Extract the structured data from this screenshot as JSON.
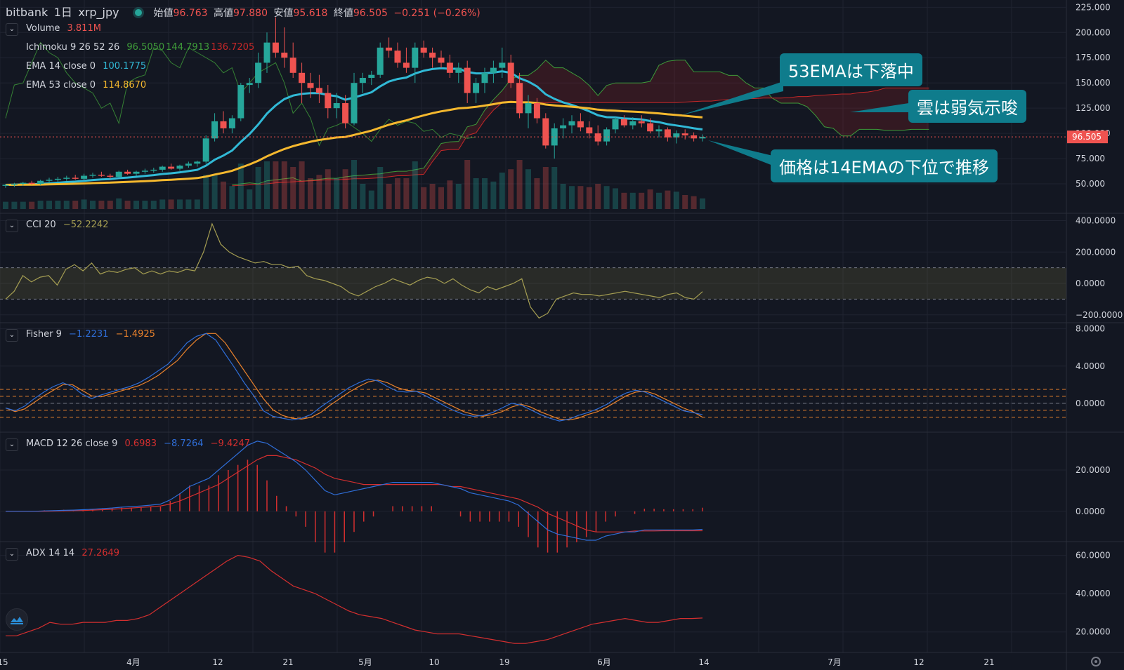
{
  "header": {
    "exchange": "bitbank",
    "interval": "1日",
    "symbol": "xrp_jpy",
    "open_label": "始値",
    "open": "96.763",
    "high_label": "高値",
    "high": "97.880",
    "low_label": "安値",
    "low": "95.618",
    "close_label": "終値",
    "close": "96.505",
    "change": "−0.251 (−0.26%)"
  },
  "legends": {
    "volume": {
      "name": "Volume",
      "value": "3.811M"
    },
    "ichimoku": {
      "name": "Ichimoku 9 26 52 26",
      "v1": "96.5050",
      "v2": "144.7913",
      "v3": "136.7205"
    },
    "ema14": {
      "name": "EMA 14 close 0",
      "value": "100.1775"
    },
    "ema53": {
      "name": "EMA 53 close 0",
      "value": "114.8670"
    },
    "cci": {
      "name": "CCI 20",
      "value": "−52.2242"
    },
    "fisher": {
      "name": "Fisher 9",
      "v1": "−1.2231",
      "v2": "−1.4925"
    },
    "macd": {
      "name": "MACD 12 26 close 9",
      "v1": "0.6983",
      "v2": "−8.7264",
      "v3": "−9.4247"
    },
    "adx": {
      "name": "ADX 14 14",
      "value": "27.2649"
    }
  },
  "annotations": {
    "ema53": "53EMAは下落中",
    "cloud": "雲は弱気示唆",
    "price": "価格は14EMAの下位で推移"
  },
  "price_tag": "96.505",
  "colors": {
    "bg": "#131722",
    "up": "#26a69a",
    "down": "#ef5350",
    "ema14": "#31b9d6",
    "ema53": "#f5b82e",
    "ichimoku_green": "#3f9b3a",
    "ichimoku_red": "#c62828",
    "cci": "#a59e52",
    "fisher_blue": "#2f6ed8",
    "fisher_orange": "#e8812c",
    "macd_blue": "#2f6ed8",
    "macd_red": "#d32f2f",
    "adx": "#d32f2f",
    "grid": "#1f2330",
    "annotation": "#0f7c8c"
  },
  "chart_data": [
    {
      "type": "candlestick",
      "axis_ticks": [
        "225.000",
        "200.000",
        "175.000",
        "150.000",
        "125.000",
        "100.000",
        "75.000",
        "50.000"
      ],
      "ylim": [
        25,
        228
      ],
      "x_labels": [
        "15",
        "4月",
        "12",
        "21",
        "5月",
        "10",
        "19",
        "6月",
        "14",
        "7月",
        "12",
        "21"
      ],
      "last_close": 96.505,
      "candles": [
        [
          48,
          50,
          46,
          49
        ],
        [
          49,
          51,
          47,
          50
        ],
        [
          50,
          52,
          48,
          51
        ],
        [
          51,
          53,
          49,
          50
        ],
        [
          50,
          54,
          49,
          53
        ],
        [
          53,
          56,
          51,
          54
        ],
        [
          54,
          57,
          52,
          55
        ],
        [
          55,
          58,
          53,
          56
        ],
        [
          56,
          59,
          54,
          55
        ],
        [
          55,
          60,
          54,
          58
        ],
        [
          58,
          61,
          56,
          59
        ],
        [
          59,
          62,
          57,
          58
        ],
        [
          58,
          60,
          55,
          57
        ],
        [
          57,
          63,
          56,
          62
        ],
        [
          62,
          64,
          59,
          60
        ],
        [
          60,
          63,
          58,
          62
        ],
        [
          62,
          65,
          60,
          63
        ],
        [
          63,
          66,
          61,
          64
        ],
        [
          64,
          68,
          62,
          67
        ],
        [
          67,
          70,
          64,
          65
        ],
        [
          65,
          69,
          63,
          68
        ],
        [
          68,
          72,
          66,
          70
        ],
        [
          70,
          73,
          67,
          72
        ],
        [
          72,
          98,
          70,
          95
        ],
        [
          95,
          120,
          92,
          112
        ],
        [
          112,
          122,
          100,
          105
        ],
        [
          105,
          118,
          100,
          115
        ],
        [
          115,
          150,
          112,
          148
        ],
        [
          148,
          155,
          140,
          150
        ],
        [
          150,
          180,
          145,
          170
        ],
        [
          170,
          200,
          160,
          190
        ],
        [
          190,
          215,
          175,
          180
        ],
        [
          180,
          205,
          165,
          175
        ],
        [
          175,
          190,
          155,
          160
        ],
        [
          160,
          170,
          130,
          150
        ],
        [
          150,
          160,
          135,
          145
        ],
        [
          145,
          158,
          130,
          140
        ],
        [
          140,
          148,
          115,
          125
        ],
        [
          125,
          140,
          115,
          130
        ],
        [
          130,
          138,
          105,
          110
        ],
        [
          110,
          160,
          108,
          150
        ],
        [
          150,
          160,
          140,
          155
        ],
        [
          155,
          162,
          148,
          158
        ],
        [
          158,
          190,
          155,
          185
        ],
        [
          185,
          195,
          175,
          182
        ],
        [
          182,
          190,
          165,
          170
        ],
        [
          170,
          185,
          160,
          165
        ],
        [
          165,
          190,
          150,
          185
        ],
        [
          185,
          192,
          175,
          180
        ],
        [
          180,
          185,
          165,
          175
        ],
        [
          175,
          182,
          165,
          170
        ],
        [
          170,
          178,
          155,
          160
        ],
        [
          160,
          170,
          150,
          165
        ],
        [
          165,
          172,
          130,
          140
        ],
        [
          140,
          155,
          130,
          150
        ],
        [
          150,
          165,
          140,
          160
        ],
        [
          160,
          172,
          150,
          165
        ],
        [
          165,
          185,
          155,
          170
        ],
        [
          170,
          178,
          145,
          150
        ],
        [
          150,
          160,
          115,
          120
        ],
        [
          120,
          138,
          105,
          130
        ],
        [
          130,
          135,
          110,
          115
        ],
        [
          115,
          120,
          85,
          88
        ],
        [
          88,
          110,
          75,
          105
        ],
        [
          105,
          115,
          95,
          108
        ],
        [
          108,
          118,
          100,
          112
        ],
        [
          112,
          120,
          102,
          106
        ],
        [
          106,
          112,
          95,
          100
        ],
        [
          100,
          108,
          88,
          92
        ],
        [
          92,
          106,
          88,
          104
        ],
        [
          104,
          116,
          100,
          114
        ],
        [
          114,
          118,
          106,
          108
        ],
        [
          108,
          116,
          104,
          112
        ],
        [
          112,
          118,
          106,
          110
        ],
        [
          110,
          115,
          100,
          102
        ],
        [
          102,
          108,
          96,
          104
        ],
        [
          104,
          106,
          92,
          96
        ],
        [
          96,
          103,
          90,
          100
        ],
        [
          100,
          104,
          94,
          98
        ],
        [
          98,
          101,
          92,
          95
        ],
        [
          95,
          99,
          92,
          96.505
        ]
      ]
    },
    {
      "type": "line",
      "name": "CCI 20",
      "axis_ticks": [
        "400.0000",
        "200.0000",
        "0.0000",
        "−200.0000"
      ],
      "ylim": [
        -250,
        420
      ],
      "values": [
        -100,
        -50,
        50,
        10,
        40,
        50,
        -10,
        90,
        120,
        80,
        130,
        60,
        80,
        70,
        90,
        100,
        60,
        80,
        60,
        80,
        70,
        90,
        80,
        200,
        380,
        250,
        200,
        170,
        150,
        130,
        140,
        120,
        120,
        100,
        110,
        50,
        30,
        20,
        0,
        -20,
        -60,
        -80,
        -50,
        -20,
        0,
        30,
        10,
        -10,
        20,
        40,
        30,
        0,
        30,
        -10,
        -40,
        -60,
        -20,
        -40,
        -20,
        0,
        30,
        -150,
        -220,
        -190,
        -100,
        -80,
        -60,
        -70,
        -70,
        -80,
        -70,
        -60,
        -50,
        -60,
        -70,
        -80,
        -90,
        -70,
        -60,
        -90,
        -100,
        -52.2242
      ]
    },
    {
      "type": "line",
      "name": "Fisher 9",
      "axis_ticks": [
        "8.0000",
        "4.0000",
        "0.0000"
      ],
      "ylim": [
        -3.1,
        8.2
      ],
      "series": [
        {
          "values": [
            -0.5,
            -0.8,
            -0.3,
            0.5,
            1.2,
            1.8,
            2.2,
            1.8,
            1.0,
            0.5,
            0.9,
            1.2,
            1.5,
            1.8,
            2.2,
            2.8,
            3.5,
            4.2,
            5.3,
            6.5,
            7.2,
            7.5,
            6.8,
            5.3,
            3.8,
            2.2,
            0.8,
            -0.8,
            -1.4,
            -1.6,
            -1.8,
            -1.6,
            -1.2,
            -0.4,
            0.3,
            1.0,
            1.7,
            2.2,
            2.6,
            2.4,
            1.8,
            1.3,
            1.2,
            1.3,
            0.8,
            0.3,
            -0.3,
            -0.8,
            -1.2,
            -1.4,
            -1.3,
            -1.0,
            -0.5,
            0.0,
            -0.2,
            -0.7,
            -1.2,
            -1.6,
            -1.9,
            -1.7,
            -1.3,
            -1.0,
            -0.6,
            -0.1,
            0.6,
            1.1,
            1.4,
            1.2,
            0.7,
            0.2,
            -0.3,
            -0.8,
            -1.0,
            -1.2231
          ]
        },
        {
          "values": [
            -0.5,
            -0.9,
            -0.6,
            0.1,
            0.8,
            1.4,
            2.0,
            2.0,
            1.4,
            0.8,
            0.7,
            1.0,
            1.3,
            1.6,
            1.9,
            2.4,
            3.0,
            3.8,
            4.6,
            5.8,
            6.8,
            7.5,
            7.5,
            6.5,
            5.0,
            3.5,
            2.0,
            0.5,
            -0.7,
            -1.3,
            -1.6,
            -1.7,
            -1.5,
            -1.0,
            -0.2,
            0.5,
            1.2,
            1.8,
            2.3,
            2.5,
            2.2,
            1.7,
            1.4,
            1.3,
            1.1,
            0.6,
            0.1,
            -0.4,
            -0.9,
            -1.2,
            -1.4,
            -1.2,
            -0.9,
            -0.4,
            -0.1,
            -0.4,
            -0.9,
            -1.3,
            -1.7,
            -1.8,
            -1.6,
            -1.2,
            -0.9,
            -0.4,
            0.2,
            0.8,
            1.2,
            1.3,
            1.0,
            0.5,
            0.0,
            -0.5,
            -0.9,
            -1.4925
          ]
        }
      ],
      "levels": [
        1.5,
        0.75,
        0,
        -0.75,
        -1.5
      ]
    },
    {
      "type": "line",
      "name": "MACD 12 26 close 9",
      "axis_ticks": [
        "20.0000",
        "0.0000"
      ],
      "ylim": [
        -14,
        37
      ],
      "series": [
        {
          "name": "MACD",
          "values": [
            0,
            0,
            0,
            0,
            0.2,
            0.3,
            0.5,
            0.6,
            0.8,
            1.0,
            1.3,
            1.6,
            2,
            2.3,
            2.6,
            3,
            3.5,
            5.5,
            8.5,
            12,
            14,
            16,
            20,
            24,
            28,
            32,
            34,
            33,
            30,
            27,
            24,
            20,
            15,
            10,
            8,
            9,
            10,
            11,
            12,
            13,
            14,
            14,
            14,
            14,
            14,
            13,
            12,
            11,
            9,
            8,
            7,
            6,
            5,
            3,
            -1,
            -5,
            -9,
            -11,
            -12,
            -13,
            -14,
            -14,
            -12,
            -11,
            -10,
            -10,
            -9,
            -9,
            -9,
            -9,
            -9,
            -9,
            -8.7264
          ]
        },
        {
          "name": "Signal",
          "values": [
            0,
            0,
            0,
            0,
            0,
            0.1,
            0.2,
            0.3,
            0.4,
            0.6,
            0.8,
            1,
            1.3,
            1.6,
            1.9,
            2.2,
            2.6,
            3.5,
            5,
            7,
            9,
            11,
            13,
            16,
            19,
            22,
            25,
            27,
            27,
            26,
            25,
            23,
            21,
            18,
            16,
            15,
            14,
            13,
            13,
            13,
            13,
            13,
            13,
            13,
            13,
            13,
            12,
            12,
            11,
            10,
            9,
            8,
            7,
            6,
            4,
            2,
            -1,
            -3,
            -5,
            -7,
            -9,
            -10,
            -10,
            -10,
            -10,
            -9.5,
            -9.5,
            -9.5,
            -9.4,
            -9.4,
            -9.4,
            -9.4,
            -9.4247
          ]
        }
      ]
    },
    {
      "type": "line",
      "name": "ADX 14 14",
      "axis_ticks": [
        "60.0000",
        "40.0000",
        "20.0000"
      ],
      "ylim": [
        10,
        65
      ],
      "values": [
        18,
        18,
        20,
        22,
        25,
        24,
        24,
        25,
        25,
        25,
        26,
        26,
        27,
        29,
        33,
        37,
        41,
        45,
        49,
        53,
        57,
        60,
        59,
        57,
        52,
        48,
        44,
        42,
        40,
        37,
        34,
        31,
        29,
        28,
        27,
        25,
        23,
        21,
        20,
        19,
        19,
        19,
        18,
        17,
        16,
        15,
        14,
        14,
        15,
        16,
        18,
        20,
        22,
        24,
        25,
        26,
        27,
        26,
        25,
        25,
        26,
        27,
        27,
        27.2649
      ]
    }
  ]
}
